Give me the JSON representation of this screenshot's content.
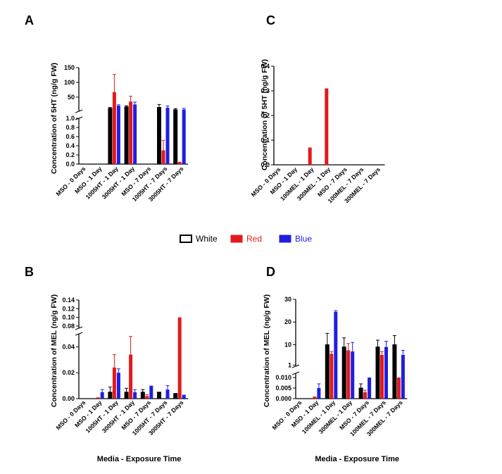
{
  "legend": {
    "entries": [
      {
        "label": "White",
        "color": "#000000"
      },
      {
        "label": "Red",
        "color": "#e31a1c"
      },
      {
        "label": "Blue",
        "color": "#1f1fe0"
      }
    ]
  },
  "chart_data": [
    {
      "panel": "A",
      "type": "bar",
      "ylabel": "Concentration of 5HT (ng/g FW)",
      "xlabel": "",
      "categories": [
        "MSO - 0 Days",
        "MSO - 1 Day",
        "1005HT - 1 Day",
        "3005HT - 1 Day",
        "MSO - 7 Days",
        "1005HT - 7 Days",
        "3005HT - 7 Days"
      ],
      "broken_axis": true,
      "segments": [
        {
          "range": [
            0,
            1.0
          ],
          "ticks": [
            0.0,
            0.2,
            0.4,
            0.6,
            0.8,
            1.0
          ],
          "tick_labels": [
            "0.0",
            "0.2",
            "0.4",
            "0.6",
            "0.8",
            "1.0"
          ]
        },
        {
          "range": [
            2,
            150
          ],
          "ticks": [
            50,
            100,
            150
          ],
          "tick_labels": [
            "50",
            "100",
            "150"
          ]
        }
      ],
      "series": [
        {
          "name": "White",
          "values": [
            0,
            0,
            12,
            17,
            0,
            15,
            7
          ],
          "errors": [
            0,
            0,
            3,
            4,
            0,
            10,
            4
          ]
        },
        {
          "name": "Red",
          "values": [
            0,
            0,
            67,
            35,
            0,
            0.3,
            0.05
          ],
          "errors": [
            0,
            0,
            60,
            18,
            0,
            0.22,
            0
          ]
        },
        {
          "name": "Blue",
          "values": [
            0,
            0,
            21,
            25,
            0,
            14,
            8
          ],
          "errors": [
            0,
            0,
            3,
            8,
            0,
            6,
            4
          ]
        }
      ]
    },
    {
      "panel": "B",
      "type": "bar",
      "ylabel": "Concentration of MEL (ng/g FW)",
      "xlabel": "Media -  Exposure Time",
      "categories": [
        "MSO - 0 Days",
        "MSO - 1 Day",
        "1005HT - 1 Day",
        "3005HT - 1 Day",
        "MSO - 7 Days",
        "1005HT - 7 Days",
        "3005HT - 7 Days"
      ],
      "broken_axis": true,
      "segments": [
        {
          "range": [
            0,
            0.05
          ],
          "ticks": [
            0.0,
            0.02,
            0.04
          ],
          "tick_labels": [
            "0.00",
            "0.02",
            "0.04"
          ]
        },
        {
          "range": [
            0.075,
            0.14
          ],
          "ticks": [
            0.08,
            0.1,
            0.12,
            0.14
          ],
          "tick_labels": [
            "0.08",
            "0.10",
            "0.12",
            "0.14"
          ]
        }
      ],
      "series": [
        {
          "name": "White",
          "values": [
            0,
            0,
            0.005,
            0.005,
            0.005,
            0.005,
            0.004
          ],
          "errors": [
            0,
            0,
            0.004,
            0.003,
            0.002,
            0,
            0
          ]
        },
        {
          "name": "Red",
          "values": [
            0,
            0.001,
            0.024,
            0.034,
            0.002,
            0,
            0.1
          ],
          "errors": [
            0,
            0,
            0.01,
            0.014,
            0.001,
            0,
            0
          ]
        },
        {
          "name": "Blue",
          "values": [
            0,
            0.005,
            0.02,
            0.005,
            0.01,
            0.007,
            0.003
          ],
          "errors": [
            0,
            0.002,
            0.003,
            0.002,
            0,
            0.003,
            0
          ]
        }
      ]
    },
    {
      "panel": "C",
      "type": "bar",
      "ylabel": "Concentration of 5HT (ng/g FW)",
      "xlabel": "",
      "categories": [
        "MSO - 0 Days",
        "MSO - 1 Day",
        "100MEL - 1 Day",
        "300MEL - 1 Day",
        "MSO - 7 Days",
        "100MEL - 7 Days",
        "300MEL - 7 Days"
      ],
      "broken_axis": false,
      "segments": [
        {
          "range": [
            0,
            0.4
          ],
          "ticks": [
            0.0,
            0.1,
            0.2,
            0.3,
            0.4
          ],
          "tick_labels": [
            "0.0",
            "0.1",
            "0.2",
            "0.3",
            "0.4"
          ]
        }
      ],
      "series": [
        {
          "name": "White",
          "values": [
            0,
            0,
            0,
            0,
            0,
            0,
            0
          ],
          "errors": [
            0,
            0,
            0,
            0,
            0,
            0,
            0
          ]
        },
        {
          "name": "Red",
          "values": [
            0,
            0,
            0.07,
            0.31,
            0,
            0,
            0
          ],
          "errors": [
            0,
            0,
            0,
            0,
            0,
            0,
            0
          ]
        },
        {
          "name": "Blue",
          "values": [
            0,
            0,
            0,
            0,
            0,
            0,
            0
          ],
          "errors": [
            0,
            0,
            0,
            0,
            0,
            0,
            0
          ]
        }
      ]
    },
    {
      "panel": "D",
      "type": "bar",
      "ylabel": "Concentration of MEL (ng/g FW)",
      "xlabel": "Media -  Exposure Time",
      "categories": [
        "MSO - 0 Days",
        "MSO - 1 Day",
        "100MEL - 1 Day",
        "300MEL - 1 Day",
        "MSO - 7 Days",
        "100MEL - 7 Days",
        "300MEL - 7 Days"
      ],
      "broken_axis": true,
      "segments": [
        {
          "range": [
            0,
            0.012
          ],
          "ticks": [
            0.0,
            0.005,
            0.01
          ],
          "tick_labels": [
            "0.000",
            "0.005",
            "0.010"
          ]
        },
        {
          "range": [
            0.5,
            30
          ],
          "ticks": [
            1,
            10,
            20,
            30
          ],
          "tick_labels": [
            "1",
            "10",
            "20",
            "30"
          ]
        }
      ],
      "series": [
        {
          "name": "White",
          "values": [
            0,
            0,
            10,
            9,
            0.005,
            9,
            10
          ],
          "errors": [
            0,
            0,
            5,
            4,
            0.002,
            3,
            4
          ]
        },
        {
          "name": "Red",
          "values": [
            0,
            0.001,
            6,
            7.5,
            0.003,
            5.5,
            0.01
          ],
          "errors": [
            0,
            0,
            1,
            3,
            0.001,
            1.5,
            0
          ]
        },
        {
          "name": "Blue",
          "values": [
            0,
            0.005,
            24.5,
            7,
            0.01,
            9,
            5.5
          ],
          "errors": [
            0,
            0.002,
            0.5,
            4,
            0,
            2.5,
            2
          ]
        }
      ]
    }
  ]
}
